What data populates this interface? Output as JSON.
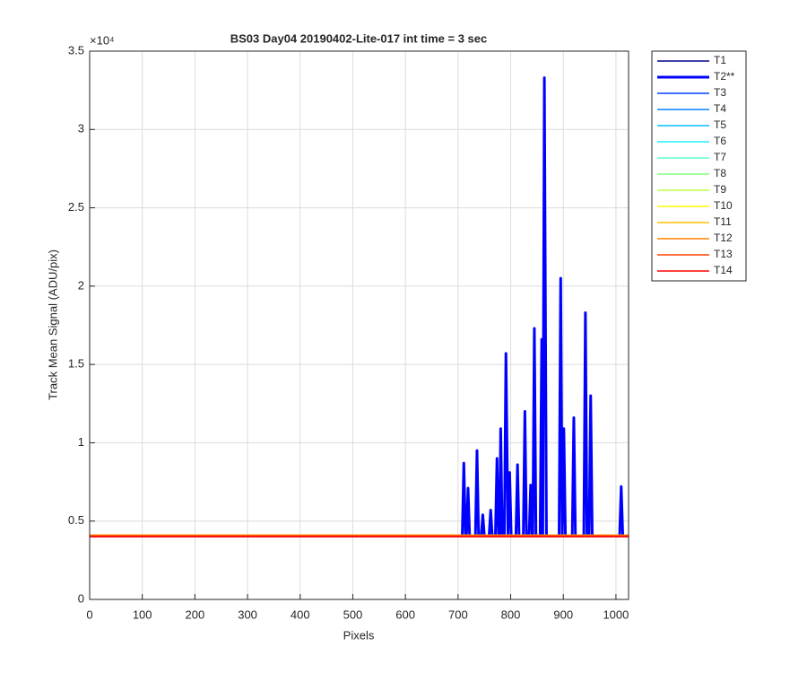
{
  "chart_data": {
    "type": "line",
    "title": "BS03 Day04 20190402-Lite-017 int time = 3 sec",
    "x_label": "Pixels",
    "y_label": "Track Mean Signal (ADU/pix)",
    "y_exponent": "×10⁴",
    "xlim": [
      0,
      1024
    ],
    "xticks": [
      0,
      100,
      200,
      300,
      400,
      500,
      600,
      700,
      800,
      900,
      1000
    ],
    "ylim": [
      0,
      3.5
    ],
    "yticks": [
      0,
      0.5,
      1,
      1.5,
      2,
      2.5,
      3,
      3.5
    ],
    "grid": true,
    "legend": "outside-right",
    "series": [
      {
        "name": "T1",
        "color": "#00008f",
        "x": [
          0,
          1024
        ],
        "values": [
          0.41,
          0.41
        ]
      },
      {
        "name": "T2**",
        "color": "#0000ff",
        "width": 3,
        "x": [
          0,
          708,
          711,
          714,
          716,
          719,
          722,
          733,
          736,
          739,
          744,
          747,
          750,
          759,
          762,
          765,
          771,
          774,
          777,
          779,
          781,
          784,
          788,
          791,
          795,
          798,
          801,
          810,
          813,
          816,
          824,
          827,
          830,
          835,
          838,
          841,
          842,
          845,
          848,
          856,
          859,
          861,
          864,
          868,
          892,
          895,
          898,
          901,
          904,
          917,
          920,
          923,
          939,
          942,
          945,
          949,
          952,
          955,
          1007,
          1010,
          1013,
          1024
        ],
        "values": [
          0.405,
          0.405,
          0.87,
          0.405,
          0.405,
          0.71,
          0.405,
          0.405,
          0.95,
          0.405,
          0.405,
          0.54,
          0.405,
          0.405,
          0.57,
          0.405,
          0.405,
          0.9,
          0.405,
          0.405,
          1.09,
          0.405,
          0.405,
          1.57,
          0.405,
          0.81,
          0.405,
          0.405,
          0.86,
          0.405,
          0.405,
          1.2,
          0.405,
          0.405,
          0.73,
          0.405,
          0.405,
          1.73,
          0.405,
          0.405,
          1.66,
          0.405,
          3.33,
          0.405,
          0.405,
          2.05,
          0.405,
          1.09,
          0.405,
          0.405,
          1.16,
          0.405,
          0.405,
          1.83,
          0.405,
          0.405,
          1.3,
          0.405,
          0.405,
          0.72,
          0.405,
          0.405
        ]
      },
      {
        "name": "T3",
        "color": "#0040ff",
        "x": [
          0,
          1024
        ],
        "values": [
          0.41,
          0.41
        ]
      },
      {
        "name": "T4",
        "color": "#0080ff",
        "x": [
          0,
          1024
        ],
        "values": [
          0.41,
          0.41
        ]
      },
      {
        "name": "T5",
        "color": "#00bfff",
        "x": [
          0,
          1024
        ],
        "values": [
          0.41,
          0.41
        ]
      },
      {
        "name": "T6",
        "color": "#20efff",
        "x": [
          0,
          1024
        ],
        "values": [
          0.41,
          0.41
        ]
      },
      {
        "name": "T7",
        "color": "#60ffcf",
        "x": [
          0,
          1024
        ],
        "values": [
          0.41,
          0.41
        ]
      },
      {
        "name": "T8",
        "color": "#80ff80",
        "x": [
          0,
          1024
        ],
        "values": [
          0.41,
          0.41
        ]
      },
      {
        "name": "T9",
        "color": "#bfff40",
        "x": [
          0,
          1024
        ],
        "values": [
          0.41,
          0.41
        ]
      },
      {
        "name": "T10",
        "color": "#ffff00",
        "x": [
          0,
          1024
        ],
        "values": [
          0.41,
          0.41
        ]
      },
      {
        "name": "T11",
        "color": "#ffbf00",
        "x": [
          0,
          1024
        ],
        "values": [
          0.41,
          0.41
        ]
      },
      {
        "name": "T12",
        "color": "#ff8000",
        "x": [
          0,
          1024
        ],
        "values": [
          0.41,
          0.41
        ]
      },
      {
        "name": "T13",
        "color": "#ff4000",
        "x": [
          0,
          1024
        ],
        "values": [
          0.405,
          0.405
        ]
      },
      {
        "name": "T14",
        "color": "#ff0000",
        "x": [
          0,
          1024
        ],
        "values": [
          0.4,
          0.4
        ]
      }
    ]
  }
}
